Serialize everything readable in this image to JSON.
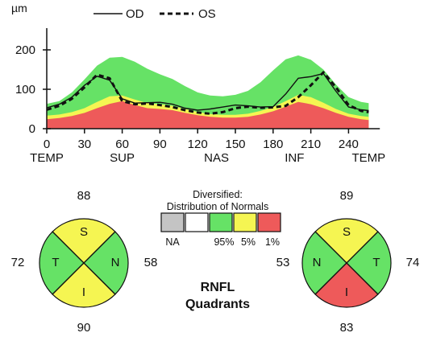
{
  "colors": {
    "green": "#66e266",
    "yellow": "#f5f552",
    "red": "#ee5a5a",
    "gray": "#c4c4c4",
    "line": "#111111"
  },
  "chart_data": {
    "type": "line",
    "ylabel": "µm",
    "ylim": [
      0,
      250
    ],
    "yticks": [
      "0",
      "100",
      "200"
    ],
    "xlim": [
      0,
      270
    ],
    "xticks": [
      "0",
      "30",
      "60",
      "90",
      "120",
      "150",
      "180",
      "210",
      "240"
    ],
    "region_labels": [
      {
        "x": 0,
        "label": "TEMP"
      },
      {
        "x": 60,
        "label": "SUP"
      },
      {
        "x": 135,
        "label": "NAS"
      },
      {
        "x": 197,
        "label": "INF"
      },
      {
        "x": 256,
        "label": "TEMP"
      }
    ],
    "legend": {
      "solid": "OD",
      "dashed": "OS"
    },
    "x": [
      0,
      10,
      20,
      30,
      40,
      50,
      60,
      70,
      80,
      90,
      100,
      110,
      120,
      130,
      140,
      150,
      160,
      170,
      180,
      190,
      200,
      210,
      220,
      230,
      240,
      250,
      256
    ],
    "normal_bands": {
      "p1": [
        24,
        27,
        32,
        40,
        52,
        63,
        70,
        60,
        52,
        50,
        47,
        40,
        34,
        30,
        28,
        28,
        30,
        36,
        44,
        56,
        68,
        62,
        52,
        40,
        30,
        24,
        22
      ],
      "p5": [
        33,
        36,
        42,
        52,
        68,
        82,
        84,
        74,
        65,
        62,
        58,
        50,
        42,
        37,
        35,
        35,
        38,
        45,
        55,
        70,
        86,
        80,
        66,
        50,
        38,
        32,
        30
      ],
      "p95": [
        63,
        70,
        92,
        125,
        160,
        180,
        182,
        170,
        152,
        138,
        126,
        108,
        92,
        84,
        82,
        86,
        96,
        118,
        148,
        176,
        186,
        175,
        150,
        112,
        80,
        68,
        65
      ]
    },
    "series": [
      {
        "name": "OD",
        "style": "solid",
        "values": [
          53,
          62,
          80,
          110,
          133,
          123,
          76,
          65,
          66,
          67,
          62,
          52,
          47,
          50,
          55,
          60,
          58,
          55,
          56,
          88,
          128,
          132,
          140,
          95,
          55,
          48,
          46
        ]
      },
      {
        "name": "OS",
        "style": "dashed",
        "values": [
          48,
          58,
          76,
          105,
          137,
          128,
          70,
          62,
          64,
          60,
          55,
          47,
          41,
          38,
          42,
          52,
          56,
          53,
          54,
          58,
          80,
          110,
          143,
          105,
          60,
          45,
          42
        ]
      }
    ]
  },
  "distribution": {
    "title_line1": "Diversified:",
    "title_line2": "Distribution of Normals",
    "items": [
      {
        "key": "gray",
        "label": "NA"
      },
      {
        "key": "white",
        "label": ""
      },
      {
        "key": "green",
        "label": "95%"
      },
      {
        "key": "yellow",
        "label": "5%"
      },
      {
        "key": "red",
        "label": "1%"
      }
    ]
  },
  "quadrants": {
    "title_line1": "RNFL",
    "title_line2": "Quadrants",
    "od": {
      "top": "88",
      "left": "72",
      "right": "58",
      "bottom": "90",
      "s": {
        "letter": "S",
        "color": "yellow"
      },
      "t": {
        "letter": "T",
        "color": "green"
      },
      "n": {
        "letter": "N",
        "color": "green"
      },
      "i": {
        "letter": "I",
        "color": "yellow"
      }
    },
    "os": {
      "top": "89",
      "left": "53",
      "right": "74",
      "bottom": "83",
      "s": {
        "letter": "S",
        "color": "yellow"
      },
      "n": {
        "letter": "N",
        "color": "green"
      },
      "t": {
        "letter": "T",
        "color": "green"
      },
      "i": {
        "letter": "I",
        "color": "red"
      }
    }
  }
}
